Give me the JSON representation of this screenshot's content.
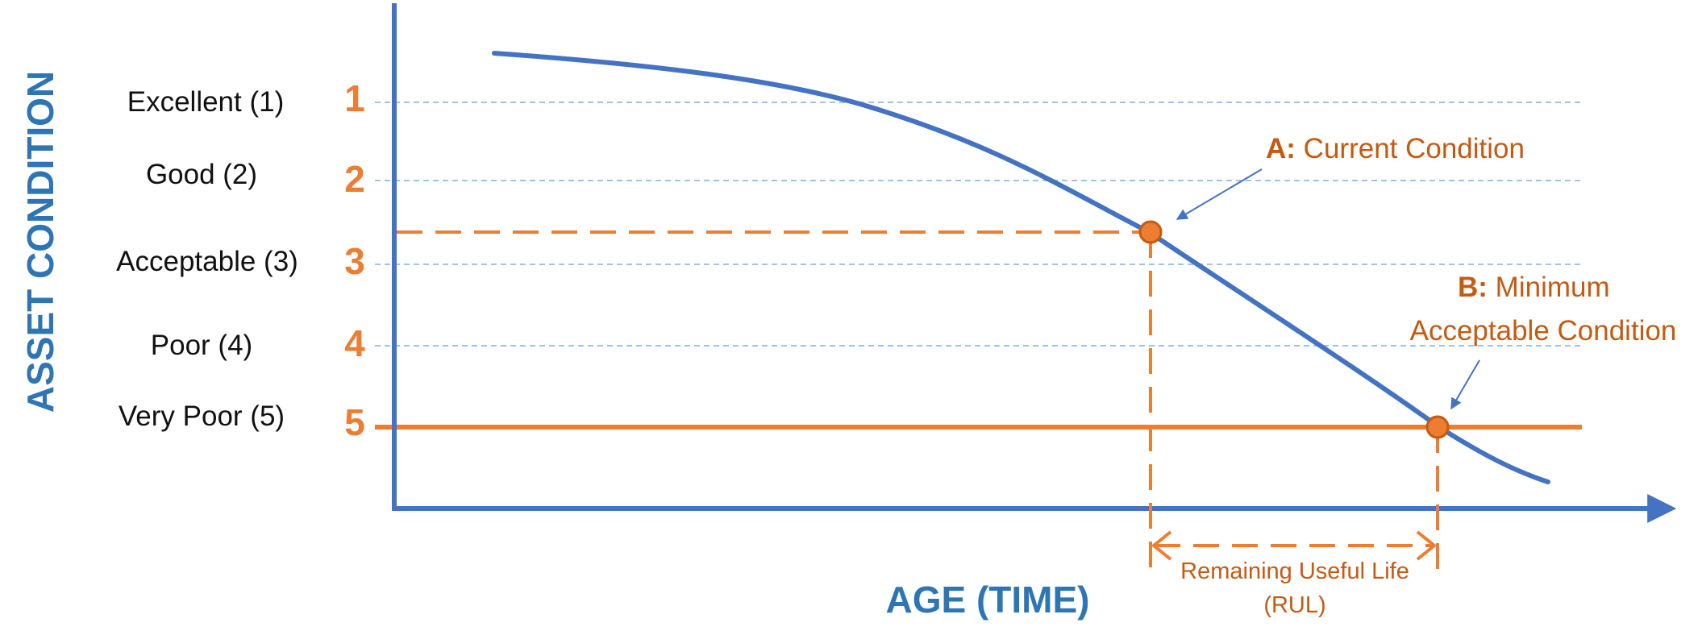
{
  "colors": {
    "axis": "#4472C4",
    "curve": "#4472C4",
    "accent": "#ED7D31",
    "accent_text": "#C55A11",
    "axis_title": "#2E75B6",
    "gridline": "#9DC3E6"
  },
  "y_axis": {
    "title": "ASSET CONDITION",
    "levels": [
      {
        "num": "1",
        "label": "Excellent (1)"
      },
      {
        "num": "2",
        "label": "Good (2)"
      },
      {
        "num": "3",
        "label": "Acceptable (3)"
      },
      {
        "num": "4",
        "label": "Poor (4)"
      },
      {
        "num": "5",
        "label": "Very Poor (5)"
      }
    ]
  },
  "x_axis": {
    "title": "AGE (TIME)"
  },
  "point_a": {
    "prefix": "A:",
    "text": "Current Condition"
  },
  "point_b": {
    "prefix": "B:",
    "line1": "Minimum",
    "line2": "Acceptable Condition"
  },
  "rul": {
    "line1": "Remaining Useful Life",
    "line2": "(RUL)"
  }
}
